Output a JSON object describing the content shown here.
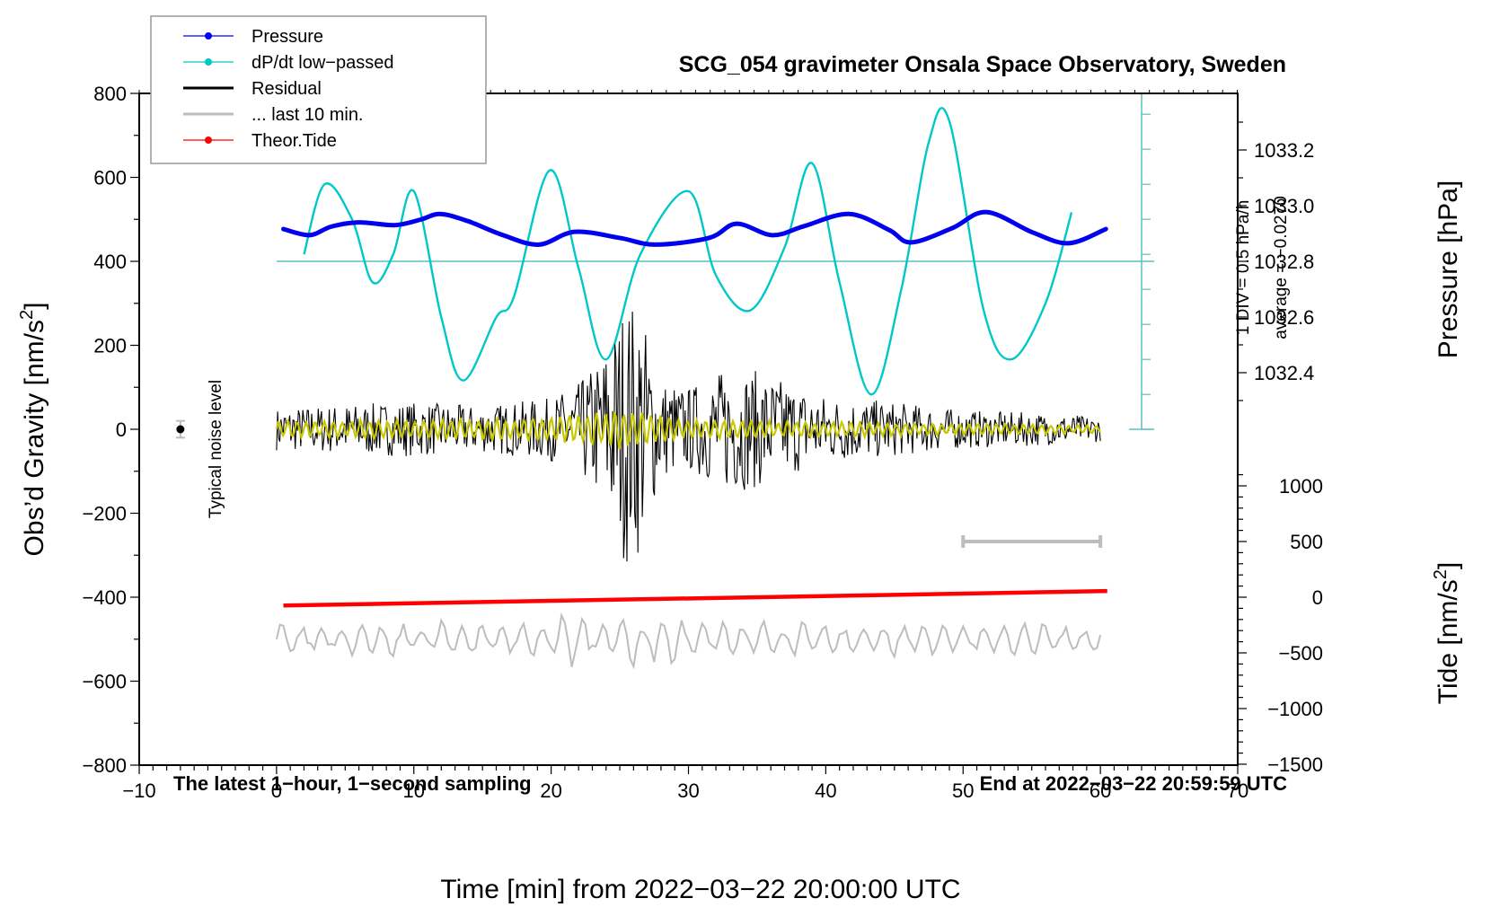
{
  "chart_data": {
    "type": "line",
    "title": "SCG_054 gravimeter Onsala Space Observatory, Sweden",
    "xlabel": "Time [min] from 2022−03−22 20:00:00 UTC",
    "ylabel_left": "Obs’d Gravity [nm/s²]",
    "ylabel_left_base": "Obs’d Gravity [nm/s",
    "ylabel_left_sup": "2",
    "ylabel_left_end": "]",
    "ylabel_right_top": "Pressure [hPa]",
    "ylabel_right_bottom_base": "Tide [nm/s",
    "ylabel_right_bottom_sup": "2",
    "ylabel_right_bottom_end": "]",
    "xlim": [
      -10,
      70
    ],
    "ylim_left": [
      -800,
      800
    ],
    "ylim_pressure": [
      1032.2,
      1033.4
    ],
    "ylim_tide": [
      -1500,
      1500
    ],
    "grid": false,
    "legend_placement": "top-left",
    "x_ticks": [
      -10,
      0,
      10,
      20,
      30,
      40,
      50,
      60,
      70
    ],
    "x_tick_labels": [
      "−10",
      "0",
      "10",
      "20",
      "30",
      "40",
      "50",
      "60",
      "70"
    ],
    "y_left_ticks": [
      800,
      600,
      400,
      200,
      0,
      -200,
      -400,
      -600,
      -800
    ],
    "y_left_tick_labels": [
      "800",
      "600",
      "400",
      "200",
      "0",
      "−200",
      "−400",
      "−600",
      "−800"
    ],
    "y_pressure_ticks": [
      1033.2,
      1033.0,
      1032.8,
      1032.6,
      1032.4
    ],
    "y_pressure_tick_labels": [
      "1033.2",
      "1033.0",
      "1032.8",
      "1032.6",
      "1032.4"
    ],
    "y_tide_ticks": [
      1000,
      500,
      0,
      -500,
      -1000,
      -1500
    ],
    "y_tide_tick_labels": [
      "1000",
      "500",
      "0",
      "−500",
      "−1000",
      "−1500"
    ],
    "annotations": {
      "subtitle_left": "The latest 1−hour, 1−second sampling",
      "subtitle_right": "End at 2022−03−22 20:59:59 UTC",
      "noise_label": "Typical noise level",
      "dpdt_scale": "1 DIV = 0.5 hPa/h",
      "dpdt_average": "average = −0.0270"
    },
    "legend": [
      {
        "name": "Pressure",
        "color": "#0000ee",
        "marker": "dot"
      },
      {
        "name": "dP/dt low−passed",
        "color": "#00c8c8",
        "marker": "dot"
      },
      {
        "name": "Residual",
        "color": "#000000",
        "marker": "none"
      },
      {
        "name": "... last 10 min.",
        "color": "#bdbdbd",
        "marker": "none"
      },
      {
        "name": "Theor.Tide",
        "color": "#ff0000",
        "marker": "dot"
      }
    ],
    "series": [
      {
        "name": "Pressure",
        "axis": "pressure_hPa",
        "color": "#0000ee",
        "x": [
          0.5,
          2.4,
          4.0,
          6.0,
          8.6,
          10.5,
          11.9,
          13.9,
          16.5,
          19.1,
          21.7,
          25.0,
          27.6,
          31.5,
          33.5,
          36.1,
          38.4,
          41.7,
          44.6,
          46.2,
          49.2,
          51.7,
          55.1,
          57.7,
          60.4
        ],
        "values": [
          1032.916,
          1032.894,
          1032.925,
          1032.94,
          1032.93,
          1032.95,
          1032.97,
          1032.945,
          1032.894,
          1032.86,
          1032.906,
          1032.884,
          1032.86,
          1032.884,
          1032.935,
          1032.894,
          1032.926,
          1032.97,
          1032.913,
          1032.868,
          1032.919,
          1032.977,
          1032.903,
          1032.865,
          1032.916
        ]
      },
      {
        "name": "dP/dt low-passed",
        "axis": "dpdt_hPa_per_h",
        "color": "#00c8c8",
        "x": [
          2.0,
          3.5,
          5.5,
          7.0,
          8.5,
          10.0,
          12.0,
          13.6,
          16.0,
          17.3,
          19.9,
          22.0,
          24.0,
          26.5,
          30.0,
          32.0,
          34.5,
          37.0,
          39.0,
          41.0,
          43.3,
          45.5,
          47.5,
          49.0,
          51.5,
          53.5,
          56.0,
          57.9
        ],
        "values": [
          0.1,
          1.1,
          0.6,
          -0.3,
          0.1,
          1.0,
          -0.8,
          -1.7,
          -0.8,
          -0.5,
          1.3,
          -0.1,
          -1.4,
          0.1,
          1.0,
          -0.2,
          -0.7,
          0.2,
          1.4,
          -0.3,
          -1.9,
          -0.4,
          1.7,
          2.0,
          -0.7,
          -1.4,
          -0.6,
          0.7
        ]
      },
      {
        "name": "Residual",
        "axis": "gravity_nm_s2",
        "color": "#000000",
        "x": [
          0,
          5,
          10,
          15,
          20,
          22,
          23.5,
          25,
          25.5,
          26,
          26.5,
          27,
          28,
          30,
          33,
          35,
          40,
          45,
          50,
          55,
          60
        ],
        "amplitude": [
          50,
          60,
          65,
          55,
          75,
          110,
          170,
          280,
          330,
          310,
          300,
          230,
          120,
          100,
          150,
          140,
          80,
          65,
          45,
          40,
          30
        ],
        "min_value": -350,
        "max_value": 335
      },
      {
        "name": "Residual (yellow smoothed overlay)",
        "axis": "gravity_nm_s2",
        "color": "#c8c800",
        "x": [
          0,
          10,
          20,
          25,
          30,
          40,
          50,
          60
        ],
        "amplitude": [
          20,
          25,
          30,
          50,
          25,
          20,
          15,
          10
        ]
      },
      {
        "name": "... last 10 min.",
        "axis": "gravity_nm_s2_offset",
        "color": "#bdbdbd",
        "x": [
          0,
          60
        ],
        "offset": -500,
        "amplitude_range": [
          20,
          140
        ]
      },
      {
        "name": "Theor.Tide",
        "axis": "tide_nm_s2",
        "color": "#ff0000",
        "x": [
          0.5,
          60.5
        ],
        "values": [
          -75,
          55
        ]
      }
    ],
    "noise_marker": {
      "x": -7,
      "y": 0,
      "error": 20
    },
    "last10_bar": {
      "x_start": 50,
      "x_end": 60,
      "tide_y": 500
    }
  }
}
